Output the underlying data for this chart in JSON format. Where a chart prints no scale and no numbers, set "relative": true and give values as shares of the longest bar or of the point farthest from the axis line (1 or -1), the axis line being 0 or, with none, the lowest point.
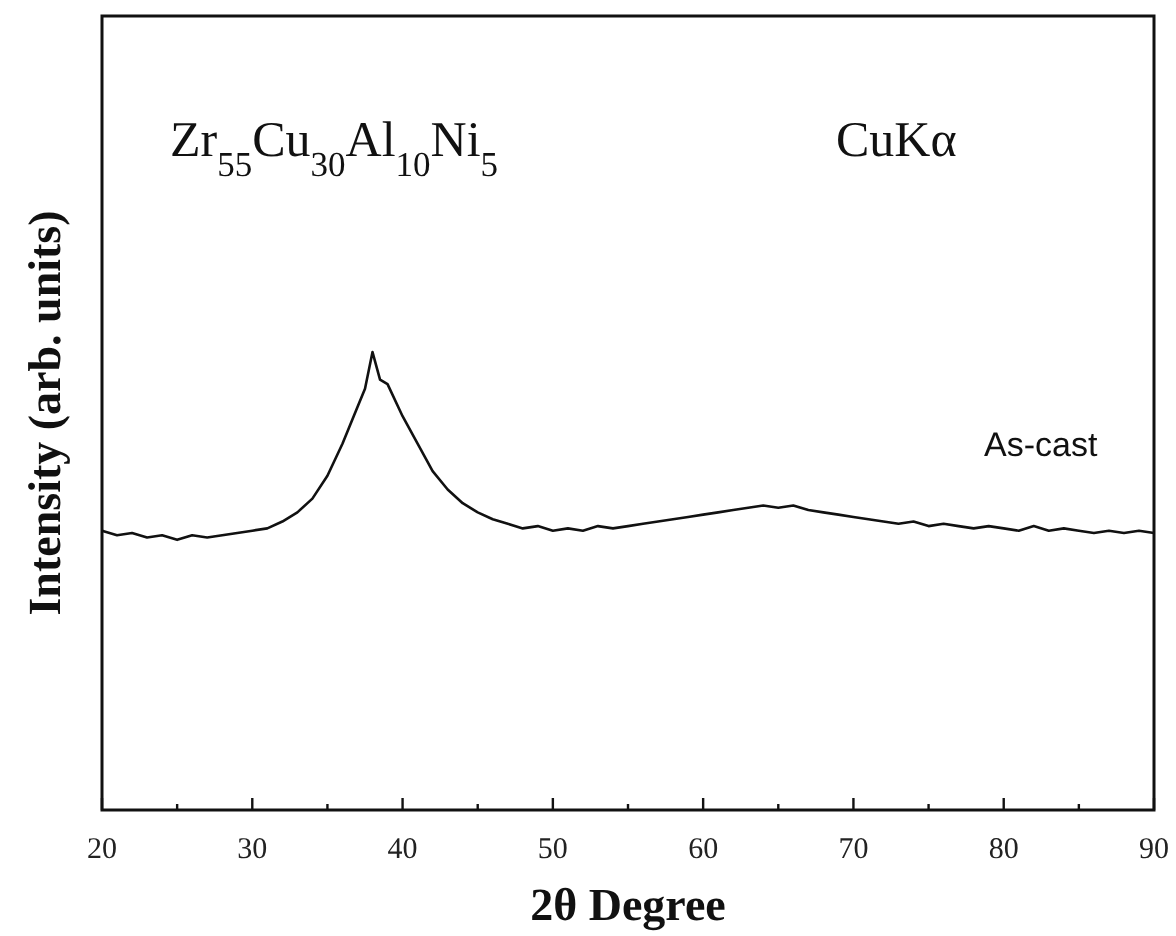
{
  "chart_data": {
    "type": "line",
    "relative": true,
    "xlabel": "2θ  Degree",
    "ylabel": "Intensity  (arb. units)",
    "annotations": [
      "Zr$_{55}$Cu$_{30}$Al$_{10}$Ni$_{5}$",
      "CuKα",
      "As-cast"
    ],
    "xlim": [
      20,
      90
    ],
    "xticks": [
      20,
      {
        "value": 25,
        "label": null
      },
      30,
      {
        "value": 35,
        "label": null
      },
      40,
      {
        "value": 45,
        "label": null
      },
      50,
      {
        "value": 55,
        "label": null
      },
      60,
      {
        "value": 65,
        "label": null
      },
      70,
      {
        "value": 75,
        "label": null
      },
      80,
      {
        "value": 85,
        "label": null
      },
      90
    ],
    "x": [
      20,
      21,
      22,
      23,
      24,
      25,
      26,
      27,
      28,
      29,
      30,
      31,
      32,
      33,
      34,
      35,
      36,
      37,
      37.5,
      38,
      38.5,
      39,
      40,
      41,
      42,
      43,
      44,
      45,
      46,
      47,
      48,
      49,
      50,
      51,
      52,
      53,
      54,
      55,
      56,
      57,
      58,
      59,
      60,
      61,
      62,
      63,
      64,
      65,
      66,
      67,
      68,
      69,
      70,
      71,
      72,
      73,
      74,
      75,
      76,
      77,
      78,
      79,
      80,
      81,
      82,
      83,
      84,
      85,
      86,
      87,
      88,
      89,
      90
    ],
    "series": [
      {
        "color": "#111111",
        "values": [
          0.61,
          0.6,
          0.605,
          0.595,
          0.6,
          0.59,
          0.6,
          0.595,
          0.6,
          0.605,
          0.61,
          0.615,
          0.63,
          0.65,
          0.68,
          0.73,
          0.8,
          0.88,
          0.92,
          1.0,
          0.94,
          0.93,
          0.86,
          0.8,
          0.74,
          0.7,
          0.67,
          0.65,
          0.635,
          0.625,
          0.615,
          0.62,
          0.61,
          0.615,
          0.61,
          0.62,
          0.615,
          0.62,
          0.625,
          0.63,
          0.635,
          0.64,
          0.645,
          0.65,
          0.655,
          0.66,
          0.665,
          0.66,
          0.665,
          0.655,
          0.65,
          0.645,
          0.64,
          0.635,
          0.63,
          0.625,
          0.63,
          0.62,
          0.625,
          0.62,
          0.615,
          0.62,
          0.615,
          0.61,
          0.62,
          0.61,
          0.615,
          0.61,
          0.605,
          0.61,
          0.605,
          0.61,
          0.605
        ]
      }
    ],
    "grid": false,
    "marker": "none",
    "line_style": "solid"
  }
}
